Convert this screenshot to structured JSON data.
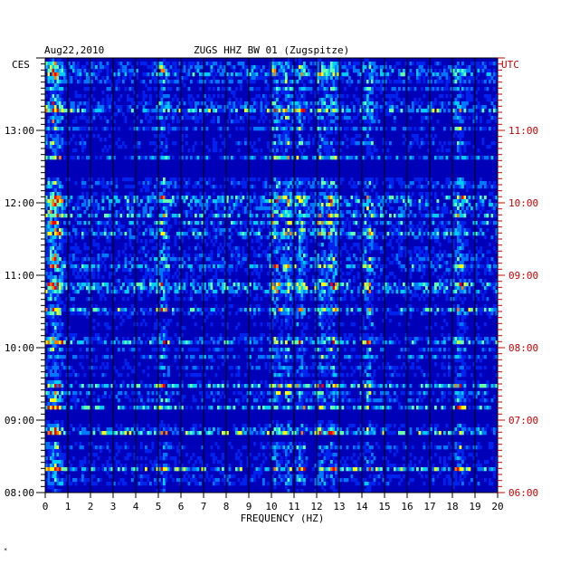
{
  "chart_data": {
    "type": "heatmap",
    "title_left": "Aug22,2010",
    "title_center": "ZUGS HHZ BW 01 (Zugspitze)",
    "left_axis_unit": "CES",
    "right_axis_unit": "UTC",
    "xlabel": "FREQUENCY (HZ)",
    "xlim": [
      0,
      20
    ],
    "x_ticks": [
      "0",
      "1",
      "2",
      "3",
      "4",
      "5",
      "6",
      "7",
      "8",
      "9",
      "10",
      "11",
      "12",
      "13",
      "14",
      "15",
      "16",
      "17",
      "18",
      "19",
      "20"
    ],
    "y_left_ticks": [
      "08:00",
      "09:00",
      "10:00",
      "11:00",
      "12:00",
      "13:00"
    ],
    "y_right_ticks": [
      "06:00",
      "07:00",
      "08:00",
      "09:00",
      "10:00",
      "11:00"
    ],
    "ylim_left": [
      "08:00",
      "14:00"
    ],
    "grid": true,
    "colormap": [
      "#00007a",
      "#0000b8",
      "#0022ee",
      "#0077ff",
      "#00ccff",
      "#66ffaa",
      "#ffff00",
      "#ff7700",
      "#ee0000"
    ],
    "bright_bands_hz": [
      0.4,
      5.2,
      10.2,
      10.7,
      11.3,
      12.2,
      12.7,
      14.3,
      18.3
    ],
    "quiet_rows": [
      "12:26",
      "12:32",
      "09:05",
      "08:45"
    ]
  },
  "footer_mark": "*"
}
